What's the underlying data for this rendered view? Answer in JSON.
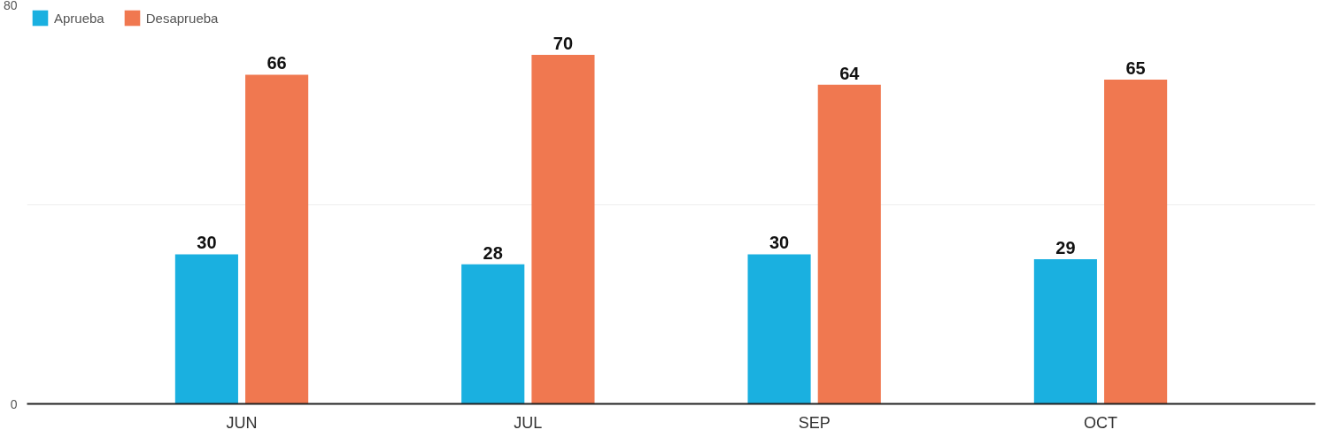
{
  "chart_data": {
    "type": "bar",
    "categories": [
      "JUN",
      "JUL",
      "SEP",
      "OCT"
    ],
    "series": [
      {
        "name": "Aprueba",
        "color": "#1ab0e0",
        "values": [
          30,
          28,
          30,
          29
        ]
      },
      {
        "name": "Desaprueba",
        "color": "#f07850",
        "values": [
          66,
          70,
          64,
          65
        ]
      }
    ],
    "ylim": [
      0,
      80
    ],
    "yticks": [
      0,
      {
        "value": 40,
        "label": null
      },
      80
    ],
    "grid": "y",
    "legend": "top left",
    "data_labels": true
  }
}
